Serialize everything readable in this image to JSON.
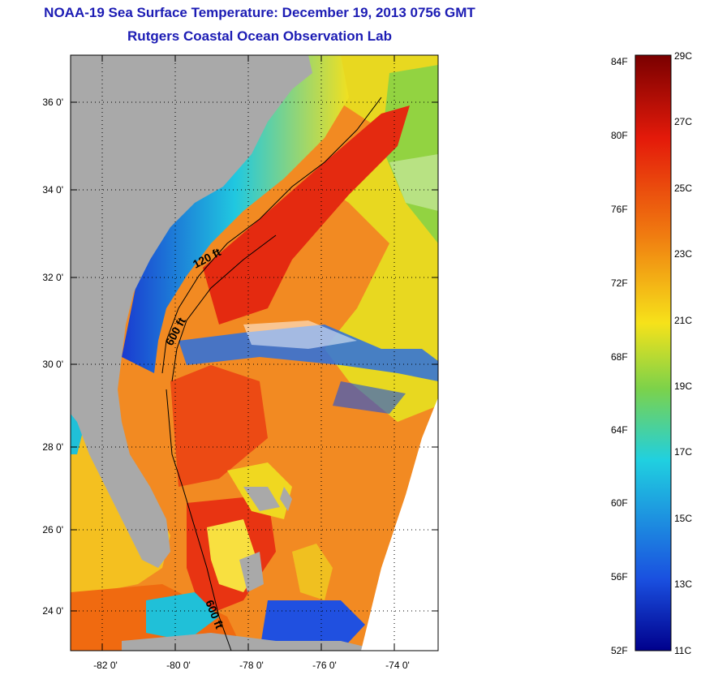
{
  "title": "NOAA-19 Sea Surface Temperature:  December 19, 2013 0756 GMT",
  "subtitle": "Rutgers Coastal Ocean Observation Lab",
  "map": {
    "lat_ticks": [
      "36 0'",
      "34 0'",
      "32 0'",
      "30 0'",
      "28 0'",
      "26 0'",
      "24 0'"
    ],
    "lon_ticks": [
      "-82 0'",
      "-80 0'",
      "-78 0'",
      "-76 0'",
      "-74 0'"
    ],
    "depth_labels": [
      "120 ft",
      "600 ft",
      "600 ft"
    ]
  },
  "colorbar": {
    "fahrenheit_labels": [
      "84F",
      "80F",
      "76F",
      "72F",
      "68F",
      "64F",
      "60F",
      "56F",
      "52F"
    ],
    "celsius_labels": [
      "29C",
      "27C",
      "25C",
      "23C",
      "21C",
      "19C",
      "17C",
      "15C",
      "13C",
      "11C"
    ],
    "colors": {
      "hot": "#7a0000",
      "red": "#e41a0a",
      "orange": "#f07a10",
      "yellow": "#f6e21a",
      "green": "#7cd24a",
      "cyan": "#20d0e0",
      "blue": "#1a50e0",
      "navy": "#00008c"
    }
  },
  "colors": {
    "land": "#a9a9a9",
    "title": "#1c1cb4"
  }
}
